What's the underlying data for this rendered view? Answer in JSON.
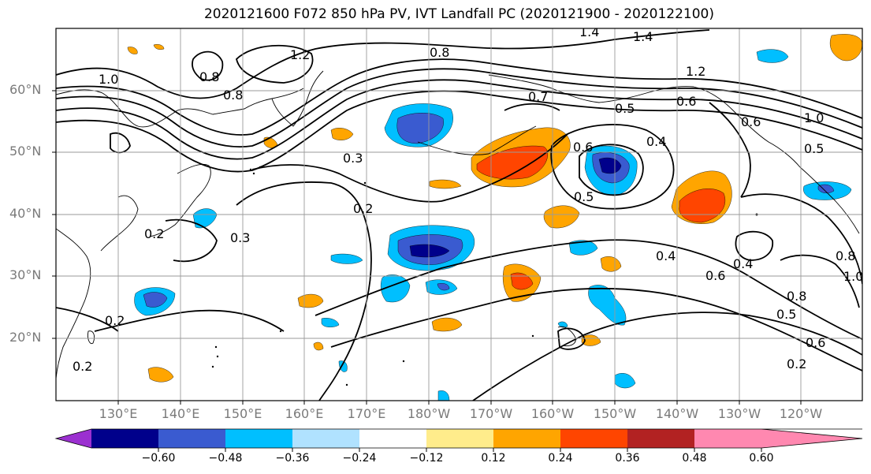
{
  "title": "2020121600 F072 850 hPa PV, IVT Landfall PC (2020121900 - 2020122100)",
  "lat_labels": [
    "60°N",
    "50°N",
    "40°N",
    "30°N",
    "20°N"
  ],
  "lon_labels": [
    "130°E",
    "140°E",
    "150°E",
    "160°E",
    "170°E",
    "180°W",
    "170°W",
    "160°W",
    "150°W",
    "140°W",
    "130°W",
    "120°W"
  ],
  "colorbar": {
    "ticks": [
      "−0.60",
      "−0.48",
      "−0.36",
      "−0.24",
      "−0.12",
      "0.12",
      "0.24",
      "0.36",
      "0.48",
      "0.60"
    ],
    "colors": [
      "#9b30d0",
      "#00008b",
      "#3a5bd0",
      "#00bfff",
      "#b0e2ff",
      "#ffffff",
      "#ffec8b",
      "#ffa500",
      "#ff4500",
      "#b22222",
      "#ff88b0"
    ]
  },
  "contour_labels": [
    "1.4",
    "1.4",
    "1.2",
    "0.8",
    "1.2",
    "0.8",
    "1.0",
    "0.8",
    "0.7",
    "0.5",
    "0.6",
    "0.3",
    "0.4",
    "0.6",
    "0.5",
    "0.2",
    "0.3",
    "0.2",
    "0.4",
    "0.6",
    "0.4",
    "0.8",
    "0.5",
    "0.6",
    "0.2",
    "0.2",
    "0.2",
    "0.8",
    "1.0",
    "0.6",
    "1.0",
    "0.5"
  ],
  "colors": {
    "contour": "#000000",
    "grid": "#9a9a9a",
    "coast": "#000000"
  }
}
